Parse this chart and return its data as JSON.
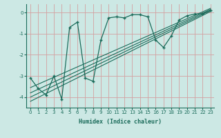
{
  "xlabel": "Humidex (Indice chaleur)",
  "bg_color": "#cce8e4",
  "line_color": "#1a6b5a",
  "grid_color": "#d4a0a0",
  "xlim": [
    -0.5,
    23.5
  ],
  "ylim": [
    -4.5,
    0.4
  ],
  "xticks": [
    0,
    1,
    2,
    3,
    4,
    5,
    6,
    7,
    8,
    9,
    10,
    11,
    12,
    13,
    14,
    15,
    16,
    17,
    18,
    19,
    20,
    21,
    22,
    23
  ],
  "yticks": [
    0,
    -1,
    -2,
    -3,
    -4
  ],
  "data_x": [
    0,
    1,
    2,
    3,
    4,
    5,
    6,
    7,
    8,
    9,
    10,
    11,
    12,
    13,
    14,
    15,
    16,
    17,
    18,
    19,
    20,
    21,
    22,
    23
  ],
  "data_y": [
    -3.1,
    -3.6,
    -3.9,
    -3.0,
    -4.1,
    -0.7,
    -0.45,
    -3.1,
    -3.25,
    -1.3,
    -0.25,
    -0.2,
    -0.25,
    -0.1,
    -0.1,
    -0.2,
    -1.3,
    -1.65,
    -1.1,
    -0.35,
    -0.15,
    -0.07,
    -0.05,
    0.1
  ],
  "reg_lines": [
    {
      "x": [
        0,
        23
      ],
      "y": [
        -4.2,
        0.05
      ]
    },
    {
      "x": [
        0,
        23
      ],
      "y": [
        -4.0,
        0.1
      ]
    },
    {
      "x": [
        0,
        23
      ],
      "y": [
        -3.8,
        0.15
      ]
    },
    {
      "x": [
        0,
        23
      ],
      "y": [
        -3.55,
        0.2
      ]
    }
  ]
}
